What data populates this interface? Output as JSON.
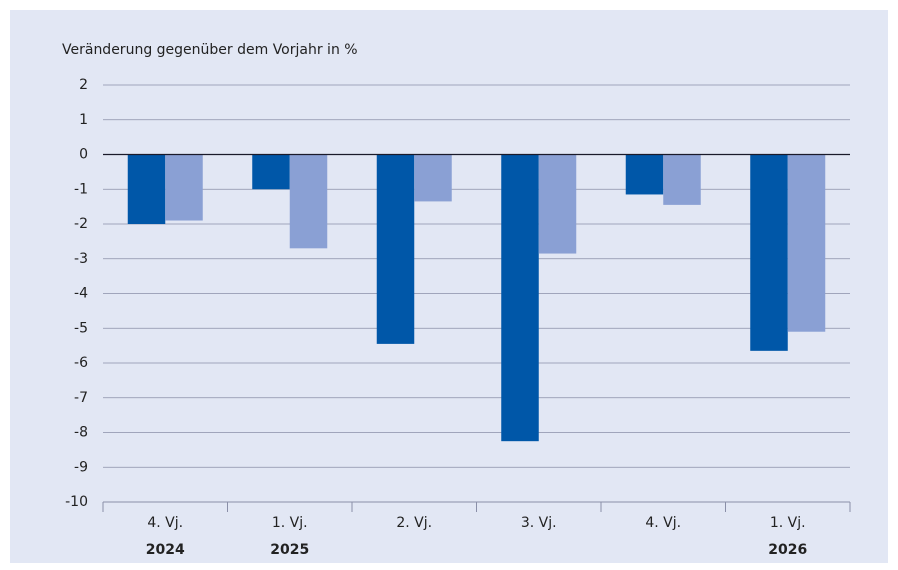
{
  "chart_data": {
    "type": "bar",
    "y_axis_label": "Veränderung gegenüber dem Vorjahr in %",
    "categories": [
      "4. Vj.",
      "1. Vj.",
      "2. Vj.",
      "3. Vj.",
      "4. Vj.",
      "1. Vj."
    ],
    "years": [
      "2024",
      "2025",
      null,
      null,
      null,
      "2026"
    ],
    "series": [
      {
        "color": "#0057a8",
        "values": [
          -2.0,
          -1.0,
          -5.45,
          -8.25,
          -1.15,
          -5.65
        ]
      },
      {
        "color": "#8aa0d4",
        "values": [
          -1.9,
          -2.7,
          -1.35,
          -2.85,
          -1.45,
          -5.1
        ]
      }
    ],
    "ylim": [
      -10,
      2
    ],
    "yticks": [
      -10,
      -9,
      -8,
      -7,
      -6,
      -5,
      -4,
      -3,
      -2,
      -1,
      0,
      1,
      2
    ],
    "grid": true
  }
}
